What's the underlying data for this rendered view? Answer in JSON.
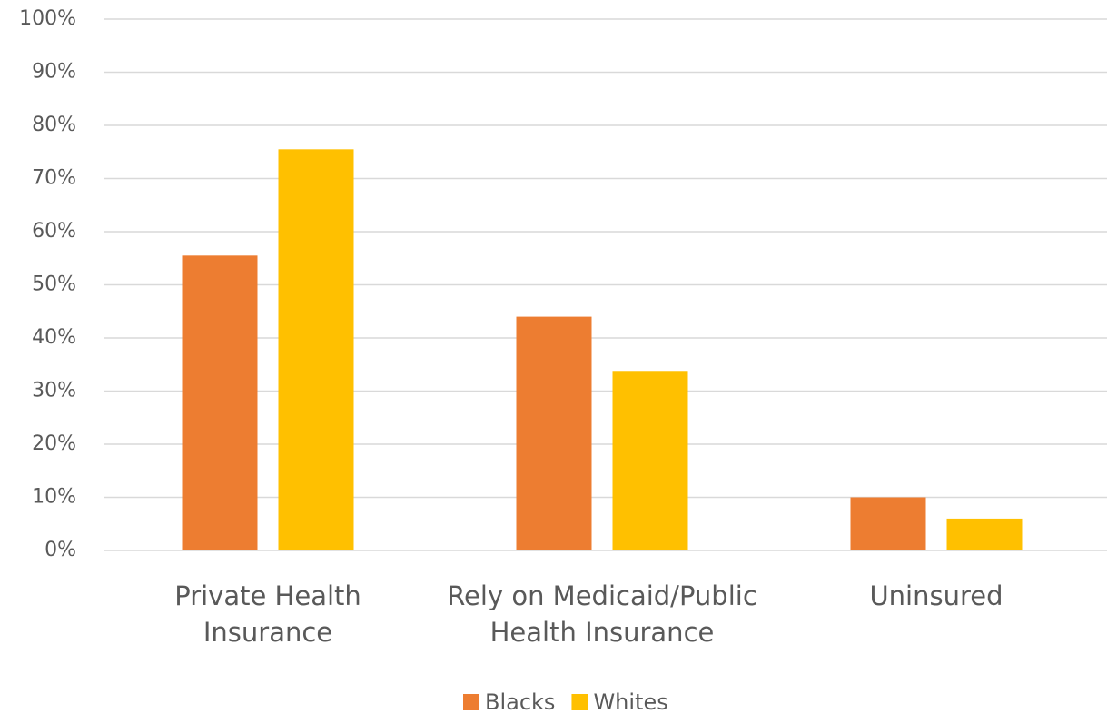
{
  "chart_data": {
    "type": "bar",
    "categories": [
      "Private Health\nInsurance",
      "Rely on Medicaid/Public\nHealth Insurance",
      "Uninsured"
    ],
    "series": [
      {
        "name": "Blacks",
        "color": "#ed7d31",
        "values": [
          55.5,
          44,
          10
        ]
      },
      {
        "name": "Whites",
        "color": "#ffc000",
        "values": [
          75.5,
          33.8,
          6
        ]
      }
    ],
    "ylim": [
      0,
      100
    ],
    "yticks": [
      {
        "value": 0,
        "label": "0%"
      },
      {
        "value": 10,
        "label": "10%"
      },
      {
        "value": 20,
        "label": "20%"
      },
      {
        "value": 30,
        "label": "30%"
      },
      {
        "value": 40,
        "label": "40%"
      },
      {
        "value": 50,
        "label": "50%"
      },
      {
        "value": 60,
        "label": "60%"
      },
      {
        "value": 70,
        "label": "70%"
      },
      {
        "value": 80,
        "label": "80%"
      },
      {
        "value": 90,
        "label": "90%"
      },
      {
        "value": 100,
        "label": "100%"
      }
    ],
    "grid": true,
    "legend": "bottom"
  }
}
